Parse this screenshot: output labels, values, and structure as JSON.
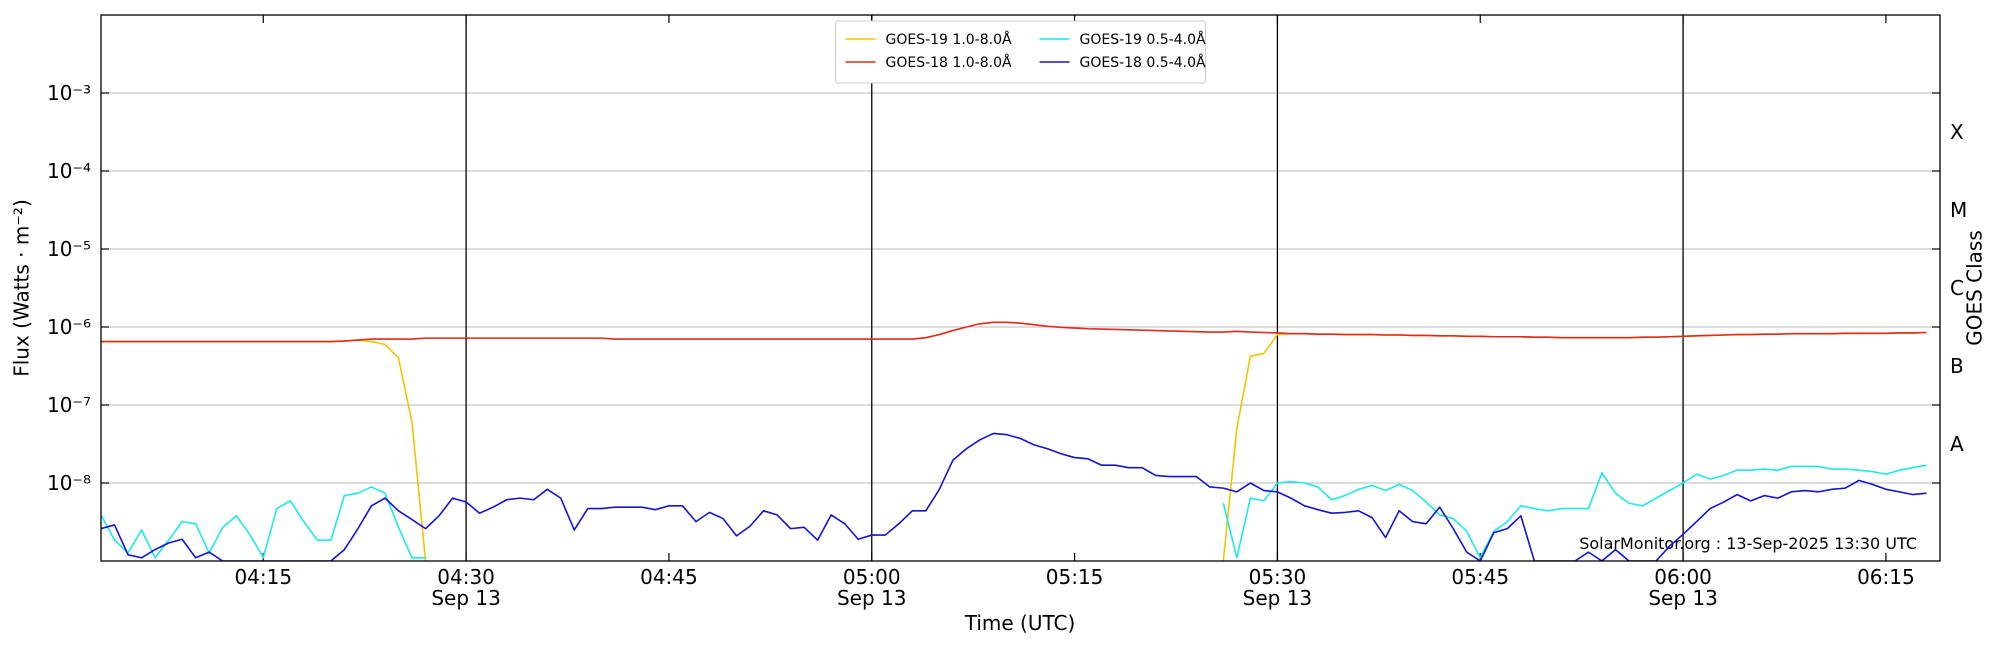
{
  "chart_data": {
    "type": "line",
    "y_label": "Flux (Watts · m⁻²)",
    "x_label": "Time (UTC)",
    "y2_label": "GOES Class",
    "annotation": "SolarMonitor.org : 13-Sep-2025 13:30 UTC",
    "yscale": "log",
    "grid": true,
    "legend": "upper center",
    "ylim": [
      1e-09,
      0.01
    ],
    "yticks": [
      {
        "value": 1e-08,
        "label": "10⁻⁸"
      },
      {
        "value": 1e-07,
        "label": "10⁻⁷"
      },
      {
        "value": 1e-06,
        "label": "10⁻⁶"
      },
      {
        "value": 1e-05,
        "label": "10⁻⁵"
      },
      {
        "value": 0.0001,
        "label": "10⁻⁴"
      },
      {
        "value": 0.001,
        "label": "10⁻³"
      }
    ],
    "class_labels": [
      {
        "value": 3.16e-08,
        "label": "A"
      },
      {
        "value": 3.16e-07,
        "label": "B"
      },
      {
        "value": 3.16e-06,
        "label": "C"
      },
      {
        "value": 3.16e-05,
        "label": "M"
      },
      {
        "value": 0.000316,
        "label": "X"
      }
    ],
    "xlim": [
      "04:03",
      "06:19"
    ],
    "xticks": [
      "04:15",
      {
        "value": "04:30",
        "label": "04:30",
        "date": "Sep 13"
      },
      "04:45",
      {
        "value": "05:00",
        "label": "05:00",
        "date": "Sep 13"
      },
      "05:15",
      {
        "value": "05:30",
        "label": "05:30",
        "date": "Sep 13"
      },
      "05:45",
      {
        "value": "06:00",
        "label": "06:00",
        "date": "Sep 13"
      },
      "06:15"
    ],
    "x": [
      "04:03",
      "04:04",
      "04:05",
      "04:06",
      "04:07",
      "04:08",
      "04:09",
      "04:10",
      "04:11",
      "04:12",
      "04:13",
      "04:14",
      "04:15",
      "04:16",
      "04:17",
      "04:18",
      "04:19",
      "04:20",
      "04:21",
      "04:22",
      "04:23",
      "04:24",
      "04:25",
      "04:26",
      "04:27",
      "04:28",
      "04:29",
      "04:30",
      "04:31",
      "04:32",
      "04:33",
      "04:34",
      "04:35",
      "04:36",
      "04:37",
      "04:38",
      "04:39",
      "04:40",
      "04:41",
      "04:42",
      "04:43",
      "04:44",
      "04:45",
      "04:46",
      "04:47",
      "04:48",
      "04:49",
      "04:50",
      "04:51",
      "04:52",
      "04:53",
      "04:54",
      "04:55",
      "04:56",
      "04:57",
      "04:58",
      "04:59",
      "05:00",
      "05:01",
      "05:02",
      "05:03",
      "05:04",
      "05:05",
      "05:06",
      "05:07",
      "05:08",
      "05:09",
      "05:10",
      "05:11",
      "05:12",
      "05:13",
      "05:14",
      "05:15",
      "05:16",
      "05:17",
      "05:18",
      "05:19",
      "05:20",
      "05:21",
      "05:22",
      "05:23",
      "05:24",
      "05:25",
      "05:26",
      "05:27",
      "05:28",
      "05:29",
      "05:30",
      "05:31",
      "05:32",
      "05:33",
      "05:34",
      "05:35",
      "05:36",
      "05:37",
      "05:38",
      "05:39",
      "05:40",
      "05:41",
      "05:42",
      "05:43",
      "05:44",
      "05:45",
      "05:46",
      "05:47",
      "05:48",
      "05:49",
      "05:50",
      "05:51",
      "05:52",
      "05:53",
      "05:54",
      "05:55",
      "05:56",
      "05:57",
      "05:58",
      "05:59",
      "06:00",
      "06:01",
      "06:02",
      "06:03",
      "06:04",
      "06:05",
      "06:06",
      "06:07",
      "06:08",
      "06:09",
      "06:10",
      "06:11",
      "06:12",
      "06:13",
      "06:14",
      "06:15",
      "06:16",
      "06:17",
      "06:18"
    ],
    "series": [
      {
        "name": "GOES-19 1.0-8.0Å",
        "color": "#f2c500",
        "values": [
          6.5e-07,
          6.5e-07,
          6.5e-07,
          6.5e-07,
          6.5e-07,
          6.5e-07,
          6.5e-07,
          6.5e-07,
          6.5e-07,
          6.5e-07,
          6.5e-07,
          6.5e-07,
          6.5e-07,
          6.5e-07,
          6.5e-07,
          6.5e-07,
          6.5e-07,
          6.5e-07,
          6.6e-07,
          6.8e-07,
          6.5e-07,
          6e-07,
          4e-07,
          6e-08,
          1e-09,
          null,
          null,
          null,
          null,
          null,
          null,
          null,
          null,
          null,
          null,
          null,
          null,
          null,
          null,
          null,
          null,
          null,
          null,
          null,
          null,
          null,
          null,
          null,
          null,
          null,
          null,
          null,
          null,
          null,
          null,
          null,
          null,
          null,
          null,
          null,
          null,
          null,
          null,
          null,
          null,
          null,
          null,
          null,
          null,
          null,
          null,
          null,
          null,
          null,
          null,
          null,
          null,
          null,
          null,
          null,
          null,
          null,
          null,
          1e-09,
          5e-08,
          4.2e-07,
          4.6e-07,
          8e-07,
          8.2e-07,
          8.2e-07,
          8.1e-07,
          8.1e-07,
          8e-07,
          8e-07,
          8e-07,
          7.9e-07,
          7.9e-07,
          7.8e-07,
          7.8e-07,
          7.7e-07,
          7.7e-07,
          7.6e-07,
          7.6e-07,
          7.5e-07,
          7.5e-07,
          7.5e-07,
          7.4e-07,
          7.4e-07,
          7.3e-07,
          7.3e-07,
          7.3e-07,
          7.3e-07,
          7.3e-07,
          7.3e-07,
          7.4e-07,
          7.4e-07,
          7.5e-07,
          7.6e-07,
          7.7e-07,
          7.8e-07,
          7.9e-07,
          8e-07,
          8e-07,
          8.1e-07,
          8.1e-07,
          8.2e-07,
          8.2e-07,
          8.2e-07,
          8.2e-07,
          8.3e-07,
          8.3e-07,
          8.3e-07,
          8.3e-07,
          8.4e-07,
          8.4e-07,
          8.5e-07
        ]
      },
      {
        "name": "GOES-18 1.0-8.0Å",
        "color": "#e3281c",
        "values": [
          6.5e-07,
          6.5e-07,
          6.5e-07,
          6.5e-07,
          6.5e-07,
          6.5e-07,
          6.5e-07,
          6.5e-07,
          6.5e-07,
          6.5e-07,
          6.5e-07,
          6.5e-07,
          6.5e-07,
          6.5e-07,
          6.5e-07,
          6.5e-07,
          6.5e-07,
          6.5e-07,
          6.6e-07,
          6.8e-07,
          7e-07,
          7e-07,
          7e-07,
          7e-07,
          7.2e-07,
          7.2e-07,
          7.2e-07,
          7.2e-07,
          7.2e-07,
          7.2e-07,
          7.2e-07,
          7.2e-07,
          7.2e-07,
          7.2e-07,
          7.2e-07,
          7.2e-07,
          7.2e-07,
          7.2e-07,
          7e-07,
          7e-07,
          7e-07,
          7e-07,
          7e-07,
          7e-07,
          7e-07,
          7e-07,
          7e-07,
          7e-07,
          7e-07,
          7e-07,
          7e-07,
          7e-07,
          7e-07,
          7e-07,
          7e-07,
          7e-07,
          7e-07,
          7e-07,
          7e-07,
          7e-07,
          7e-07,
          7.3e-07,
          8e-07,
          9e-07,
          1e-06,
          1.1e-06,
          1.15e-06,
          1.15e-06,
          1.12e-06,
          1.07e-06,
          1.02e-06,
          9.9e-07,
          9.7e-07,
          9.5e-07,
          9.4e-07,
          9.3e-07,
          9.2e-07,
          9.1e-07,
          9e-07,
          8.9e-07,
          8.8e-07,
          8.7e-07,
          8.6e-07,
          8.6e-07,
          8.8e-07,
          8.6e-07,
          8.5e-07,
          8.4e-07,
          8.2e-07,
          8.2e-07,
          8.1e-07,
          8.1e-07,
          8e-07,
          8e-07,
          8e-07,
          7.9e-07,
          7.9e-07,
          7.8e-07,
          7.8e-07,
          7.7e-07,
          7.7e-07,
          7.6e-07,
          7.6e-07,
          7.5e-07,
          7.5e-07,
          7.5e-07,
          7.4e-07,
          7.4e-07,
          7.3e-07,
          7.3e-07,
          7.3e-07,
          7.3e-07,
          7.3e-07,
          7.3e-07,
          7.4e-07,
          7.4e-07,
          7.5e-07,
          7.6e-07,
          7.7e-07,
          7.8e-07,
          7.9e-07,
          8e-07,
          8e-07,
          8.1e-07,
          8.1e-07,
          8.2e-07,
          8.2e-07,
          8.2e-07,
          8.2e-07,
          8.3e-07,
          8.3e-07,
          8.3e-07,
          8.3e-07,
          8.4e-07,
          8.4e-07,
          8.5e-07
        ]
      },
      {
        "name": "GOES-19 0.5-4.0Å",
        "color": "#1de9e9",
        "values": [
          3.9e-09,
          1.85e-09,
          1.27e-09,
          2.5e-09,
          1.1e-09,
          1.85e-09,
          3.2e-09,
          3e-09,
          1.27e-09,
          2.7e-09,
          3.8e-09,
          2.2e-09,
          1.1e-09,
          4.7e-09,
          5.9e-09,
          3.2e-09,
          1.85e-09,
          1.85e-09,
          6.9e-09,
          7.4e-09,
          8.9e-09,
          7.4e-09,
          2.7e-09,
          1.1e-09,
          1.1e-09,
          null,
          null,
          null,
          null,
          null,
          null,
          null,
          null,
          null,
          null,
          null,
          null,
          null,
          null,
          null,
          null,
          null,
          null,
          null,
          null,
          null,
          null,
          null,
          null,
          null,
          null,
          null,
          null,
          null,
          null,
          null,
          null,
          null,
          null,
          null,
          null,
          null,
          null,
          null,
          null,
          null,
          null,
          null,
          null,
          null,
          null,
          null,
          null,
          null,
          null,
          null,
          null,
          null,
          null,
          null,
          null,
          null,
          null,
          5.5e-09,
          1.1e-09,
          6.4e-09,
          5.9e-09,
          1e-08,
          1.04e-08,
          1e-08,
          8.9e-09,
          6.1e-09,
          6.9e-09,
          8.3e-09,
          9.3e-09,
          8e-09,
          9.6e-09,
          8e-09,
          5.7e-09,
          3.9e-09,
          3.5e-09,
          2.4e-09,
          1.1e-09,
          2.4e-09,
          3.2e-09,
          5.1e-09,
          4.7e-09,
          4.4e-09,
          4.7e-09,
          4.7e-09,
          4.7e-09,
          1.35e-08,
          7.4e-09,
          5.5e-09,
          5.1e-09,
          6.4e-09,
          8e-09,
          1e-08,
          1.3e-08,
          1.12e-08,
          1.25e-08,
          1.46e-08,
          1.46e-08,
          1.51e-08,
          1.46e-08,
          1.63e-08,
          1.63e-08,
          1.63e-08,
          1.51e-08,
          1.51e-08,
          1.46e-08,
          1.4e-08,
          1.3e-08,
          1.46e-08,
          1.57e-08,
          1.69e-08
        ]
      },
      {
        "name": "GOES-18 0.5-4.0Å",
        "color": "#1414d2",
        "values": [
          2.6e-09,
          2.9e-09,
          1.2e-09,
          1.1e-09,
          1.4e-09,
          1.7e-09,
          1.9e-09,
          1.1e-09,
          1.3e-09,
          1e-09,
          1e-09,
          1e-09,
          1e-09,
          1e-09,
          1e-09,
          1e-09,
          1e-09,
          1e-09,
          1.4e-09,
          2.6e-09,
          5.1e-09,
          6.4e-09,
          4.4e-09,
          3.4e-09,
          2.6e-09,
          3.8e-09,
          6.4e-09,
          5.7e-09,
          4.1e-09,
          4.9e-09,
          6.1e-09,
          6.4e-09,
          6.1e-09,
          8.3e-09,
          6.4e-09,
          2.5e-09,
          4.7e-09,
          4.7e-09,
          4.9e-09,
          4.9e-09,
          4.9e-09,
          4.55e-09,
          5.1e-09,
          5.1e-09,
          3.2e-09,
          4.2e-09,
          3.5e-09,
          2.1e-09,
          2.8e-09,
          4.4e-09,
          3.9e-09,
          2.6e-09,
          2.7e-09,
          1.85e-09,
          3.9e-09,
          3e-09,
          1.9e-09,
          2.15e-09,
          2.15e-09,
          3e-09,
          4.4e-09,
          4.4e-09,
          8.3e-09,
          1.96e-08,
          2.75e-08,
          3.58e-08,
          4.32e-08,
          4.16e-08,
          3.72e-08,
          3.08e-08,
          2.75e-08,
          2.37e-08,
          2.12e-08,
          2.04e-08,
          1.69e-08,
          1.69e-08,
          1.57e-08,
          1.57e-08,
          1.25e-08,
          1.21e-08,
          1.21e-08,
          1.21e-08,
          8.9e-09,
          8.6e-09,
          7.7e-09,
          1e-08,
          8e-09,
          7.7e-09,
          6.4e-09,
          5.1e-09,
          4.55e-09,
          4.1e-09,
          4.2e-09,
          4.4e-09,
          3.6e-09,
          2e-09,
          4.4e-09,
          3.2e-09,
          3e-09,
          4.9e-09,
          2.6e-09,
          1.3e-09,
          1e-09,
          2.3e-09,
          2.6e-09,
          3.8e-09,
          1e-09,
          1e-09,
          1e-09,
          1e-09,
          1.3e-09,
          1e-09,
          1.4e-09,
          1e-09,
          1e-09,
          1e-09,
          1.55e-09,
          2.2e-09,
          3.2e-09,
          4.7e-09,
          5.7e-09,
          7.1e-09,
          5.9e-09,
          6.9e-09,
          6.4e-09,
          7.7e-09,
          8e-09,
          7.7e-09,
          8.3e-09,
          8.6e-09,
          1.08e-08,
          9.6e-09,
          8.3e-09,
          7.7e-09,
          7.1e-09,
          7.4e-09
        ]
      }
    ]
  }
}
